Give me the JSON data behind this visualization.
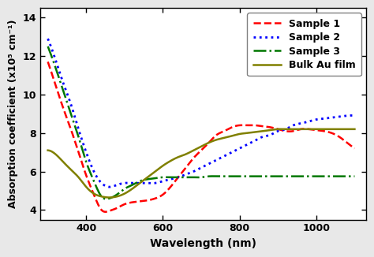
{
  "title": "",
  "xlabel": "Wavelength (nm)",
  "ylabel": "Absorption coefficient (x10⁵ cm⁻¹)",
  "xlim": [
    280,
    1130
  ],
  "ylim": [
    3.5,
    14.5
  ],
  "yticks": [
    4,
    6,
    8,
    10,
    12,
    14
  ],
  "xticks": [
    400,
    600,
    800,
    1000
  ],
  "legend_labels": [
    "Sample 1",
    "Sample 2",
    "Sample 3",
    "Bulk Au film"
  ],
  "sample1_color": "#ff0000",
  "sample2_color": "#0000ff",
  "sample3_color": "#007700",
  "bulk_color": "#808000",
  "sample1": {
    "x": [
      300,
      320,
      340,
      360,
      380,
      400,
      420,
      440,
      460,
      480,
      500,
      520,
      540,
      560,
      580,
      600,
      620,
      640,
      660,
      680,
      700,
      720,
      740,
      760,
      780,
      800,
      820,
      840,
      860,
      880,
      900,
      920,
      940,
      960,
      980,
      1000,
      1020,
      1040,
      1060,
      1080,
      1100
    ],
    "y": [
      11.7,
      10.5,
      9.3,
      8.2,
      7.0,
      5.8,
      4.8,
      4.0,
      3.95,
      4.1,
      4.3,
      4.4,
      4.45,
      4.5,
      4.6,
      4.8,
      5.2,
      5.7,
      6.2,
      6.7,
      7.1,
      7.5,
      7.9,
      8.1,
      8.3,
      8.4,
      8.4,
      8.4,
      8.35,
      8.3,
      8.2,
      8.1,
      8.1,
      8.2,
      8.2,
      8.15,
      8.1,
      8.0,
      7.8,
      7.5,
      7.2
    ]
  },
  "sample2": {
    "x": [
      300,
      320,
      340,
      360,
      380,
      400,
      420,
      440,
      460,
      480,
      500,
      520,
      540,
      560,
      580,
      600,
      620,
      640,
      660,
      680,
      700,
      720,
      740,
      760,
      780,
      800,
      820,
      840,
      860,
      880,
      900,
      920,
      940,
      960,
      980,
      1000,
      1020,
      1040,
      1060,
      1080,
      1100
    ],
    "y": [
      12.9,
      11.8,
      10.6,
      9.5,
      8.2,
      7.0,
      6.0,
      5.4,
      5.2,
      5.3,
      5.4,
      5.4,
      5.4,
      5.4,
      5.4,
      5.5,
      5.6,
      5.7,
      5.85,
      6.0,
      6.2,
      6.4,
      6.6,
      6.8,
      7.0,
      7.2,
      7.4,
      7.6,
      7.8,
      7.9,
      8.1,
      8.2,
      8.4,
      8.5,
      8.6,
      8.7,
      8.75,
      8.8,
      8.85,
      8.9,
      8.9
    ]
  },
  "sample3": {
    "x": [
      300,
      320,
      340,
      360,
      380,
      400,
      420,
      440,
      460,
      480,
      500,
      520,
      540,
      560,
      580,
      600,
      620,
      640,
      660,
      680,
      700,
      720,
      740,
      760,
      780,
      800,
      820,
      840,
      860,
      880,
      900,
      920,
      940,
      960,
      980,
      1000,
      1020,
      1040,
      1060,
      1080,
      1100
    ],
    "y": [
      12.5,
      11.4,
      10.2,
      9.0,
      7.8,
      6.5,
      5.5,
      4.7,
      4.6,
      4.8,
      5.1,
      5.3,
      5.5,
      5.6,
      5.65,
      5.7,
      5.7,
      5.7,
      5.7,
      5.7,
      5.7,
      5.75,
      5.75,
      5.75,
      5.75,
      5.75,
      5.75,
      5.75,
      5.75,
      5.75,
      5.75,
      5.75,
      5.75,
      5.75,
      5.75,
      5.75,
      5.75,
      5.75,
      5.75,
      5.75,
      5.75
    ]
  },
  "bulk": {
    "x": [
      300,
      320,
      340,
      360,
      380,
      400,
      420,
      440,
      460,
      480,
      500,
      520,
      540,
      560,
      580,
      600,
      620,
      640,
      660,
      680,
      700,
      720,
      740,
      760,
      780,
      800,
      820,
      840,
      860,
      880,
      900,
      920,
      940,
      960,
      980,
      1000,
      1020,
      1040,
      1060,
      1080,
      1100
    ],
    "y": [
      7.1,
      6.9,
      6.5,
      6.1,
      5.7,
      5.2,
      4.85,
      4.7,
      4.65,
      4.7,
      4.85,
      5.1,
      5.4,
      5.7,
      6.0,
      6.3,
      6.55,
      6.75,
      6.9,
      7.1,
      7.3,
      7.5,
      7.65,
      7.75,
      7.85,
      7.95,
      8.0,
      8.05,
      8.1,
      8.15,
      8.2,
      8.2,
      8.2,
      8.2,
      8.2,
      8.2,
      8.2,
      8.2,
      8.2,
      8.2,
      8.2
    ]
  },
  "figsize": [
    4.74,
    3.26
  ],
  "dpi": 100
}
